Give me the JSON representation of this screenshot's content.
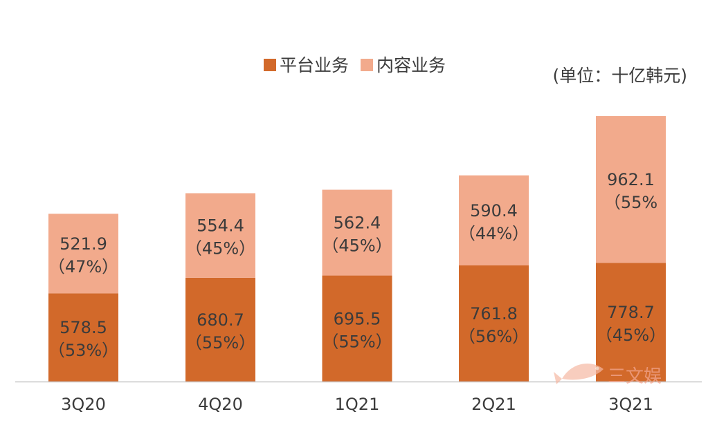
{
  "chart_data": {
    "type": "bar",
    "stacked": true,
    "unit_label": "(单位：十亿韩元)",
    "categories": [
      "3Q20",
      "4Q20",
      "1Q21",
      "2Q21",
      "3Q21"
    ],
    "series": [
      {
        "name": "平台业务",
        "color": "#d2692a",
        "values": [
          578.5,
          680.7,
          695.5,
          761.8,
          778.7
        ],
        "value_labels": [
          "578.5",
          "680.7",
          "695.5",
          "761.8",
          "778.7"
        ],
        "share_labels": [
          "（53%）",
          "（55%）",
          "（55%）",
          "（56%）",
          "（45%）"
        ]
      },
      {
        "name": "内容业务",
        "color": "#f2aa8c",
        "values": [
          521.9,
          554.4,
          562.4,
          590.4,
          962.1
        ],
        "value_labels": [
          "521.9",
          "554.4",
          "562.4",
          "590.4",
          "962.1"
        ],
        "share_labels": [
          "（47%）",
          "（45%）",
          "（45%）",
          "（44%）",
          "（55%"
        ]
      }
    ],
    "ylim": [
      0,
      1740.8
    ],
    "grid": false,
    "legend_position": "top-center"
  },
  "watermark": {
    "text": "三文娱",
    "icon": "fish-logo-icon",
    "color": "#f3a68f"
  }
}
